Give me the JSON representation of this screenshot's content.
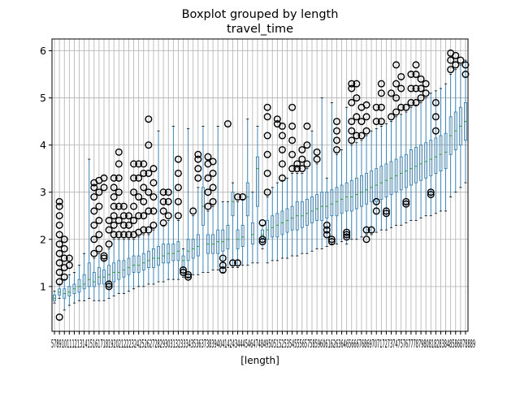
{
  "chart_data": {
    "type": "boxplot",
    "suptitle": "Boxplot grouped by length",
    "title": "travel_time",
    "xlabel": "[length]",
    "ylabel": "",
    "ylim": [
      0.05,
      6.25
    ],
    "yticks": [
      1,
      2,
      3,
      4,
      5,
      6
    ],
    "grid": true,
    "colors": {
      "box": "#1f77b4",
      "median": "#2ca02c",
      "outlier": "#000000",
      "grid": "#b0b0b0"
    },
    "visible_tick_labels_text": "57891011121314151617181920212223242526272829303132333435363738394041424344454647484950515253545556575859606162636465666768697071727374757677787980818283848586878889",
    "categories": [
      "5",
      "7",
      "8",
      "9",
      "10",
      "11",
      "12",
      "13",
      "14",
      "15",
      "16",
      "17",
      "18",
      "19",
      "20",
      "21",
      "22",
      "23",
      "24",
      "25",
      "26",
      "27",
      "28",
      "29",
      "30",
      "31",
      "32",
      "33",
      "34",
      "35",
      "36",
      "37",
      "38",
      "39",
      "40",
      "41",
      "42",
      "43",
      "44",
      "45",
      "46",
      "47",
      "48",
      "49",
      "50",
      "51",
      "52",
      "53",
      "54",
      "55",
      "56",
      "57",
      "58",
      "59",
      "60",
      "61",
      "62",
      "63",
      "64",
      "65",
      "66",
      "67",
      "68",
      "69",
      "70",
      "71",
      "72",
      "73",
      "74",
      "75",
      "76",
      "77",
      "78",
      "79",
      "80",
      "81",
      "82",
      "83",
      "84",
      "85",
      "86",
      "87",
      "88",
      "89"
    ],
    "boxes": [
      {
        "whislo": 0.65,
        "q1": 0.7,
        "med": 0.75,
        "q3": 0.82,
        "whishi": 0.9,
        "fliers": []
      },
      {
        "whislo": 0.75,
        "q1": 0.82,
        "med": 0.88,
        "q3": 0.95,
        "whishi": 1.05,
        "fliers": [
          0.35,
          1.1,
          1.3,
          1.5,
          1.7,
          1.9,
          2.1,
          2.3,
          2.5,
          2.7,
          2.8
        ]
      },
      {
        "whislo": 0.5,
        "q1": 0.75,
        "med": 0.85,
        "q3": 0.95,
        "whishi": 1.15,
        "fliers": [
          1.2,
          1.4,
          1.6,
          1.8,
          2.0
        ]
      },
      {
        "whislo": 0.6,
        "q1": 0.8,
        "med": 0.88,
        "q3": 1.0,
        "whishi": 1.25,
        "fliers": [
          1.45,
          1.6
        ]
      },
      {
        "whislo": 0.65,
        "q1": 0.85,
        "med": 0.95,
        "q3": 1.05,
        "whishi": 1.3,
        "fliers": []
      },
      {
        "whislo": 0.7,
        "q1": 0.88,
        "med": 1.0,
        "q3": 1.15,
        "whishi": 1.45,
        "fliers": []
      },
      {
        "whislo": 0.7,
        "q1": 0.95,
        "med": 1.05,
        "q3": 1.25,
        "whishi": 1.7,
        "fliers": []
      },
      {
        "whislo": 0.75,
        "q1": 1.0,
        "med": 1.15,
        "q3": 1.5,
        "whishi": 3.7,
        "fliers": []
      },
      {
        "whislo": 0.7,
        "q1": 1.0,
        "med": 1.1,
        "q3": 1.3,
        "whishi": 1.6,
        "fliers": [
          1.7,
          2.0,
          2.3,
          2.6,
          2.9,
          3.1,
          3.2
        ]
      },
      {
        "whislo": 0.7,
        "q1": 1.05,
        "med": 1.2,
        "q3": 1.4,
        "whishi": 1.7,
        "fliers": [
          1.8,
          2.1,
          2.4,
          2.7,
          3.0,
          3.25
        ]
      },
      {
        "whislo": 0.7,
        "q1": 1.05,
        "med": 1.2,
        "q3": 1.35,
        "whishi": 1.55,
        "fliers": [
          1.6,
          1.65,
          3.1,
          3.3
        ]
      },
      {
        "whislo": 0.75,
        "q1": 1.1,
        "med": 1.25,
        "q3": 1.45,
        "whishi": 1.8,
        "fliers": [
          1.0,
          1.05,
          1.9,
          2.2,
          2.4
        ]
      },
      {
        "whislo": 0.8,
        "q1": 1.1,
        "med": 1.3,
        "q3": 1.5,
        "whishi": 2.0,
        "fliers": [
          2.1,
          2.3,
          2.5,
          2.7,
          2.9,
          3.1,
          3.3
        ]
      },
      {
        "whislo": 0.85,
        "q1": 1.15,
        "med": 1.3,
        "q3": 1.55,
        "whishi": 2.0,
        "fliers": [
          2.1,
          2.4,
          2.7,
          3.0,
          3.3,
          3.6,
          3.85
        ]
      },
      {
        "whislo": 0.85,
        "q1": 1.2,
        "med": 1.35,
        "q3": 1.55,
        "whishi": 2.0,
        "fliers": [
          2.1,
          2.3,
          2.5,
          2.7
        ]
      },
      {
        "whislo": 0.9,
        "q1": 1.25,
        "med": 1.4,
        "q3": 1.6,
        "whishi": 2.0,
        "fliers": [
          2.1,
          2.3,
          2.5
        ]
      },
      {
        "whislo": 0.95,
        "q1": 1.3,
        "med": 1.45,
        "q3": 1.65,
        "whishi": 2.0,
        "fliers": [
          2.1,
          2.4,
          2.7,
          3.0,
          3.3,
          3.6
        ]
      },
      {
        "whislo": 1.0,
        "q1": 1.3,
        "med": 1.45,
        "q3": 1.65,
        "whishi": 2.05,
        "fliers": [
          2.15,
          2.5,
          2.9,
          3.3,
          3.6
        ]
      },
      {
        "whislo": 1.0,
        "q1": 1.35,
        "med": 1.5,
        "q3": 1.7,
        "whishi": 2.1,
        "fliers": [
          2.2,
          2.5,
          2.8,
          3.1,
          3.4,
          3.6
        ]
      },
      {
        "whislo": 1.05,
        "q1": 1.4,
        "med": 1.55,
        "q3": 1.75,
        "whishi": 2.1,
        "fliers": [
          2.2,
          2.6,
          3.0,
          3.4,
          4.0,
          4.55
        ]
      },
      {
        "whislo": 1.05,
        "q1": 1.4,
        "med": 1.6,
        "q3": 1.8,
        "whishi": 2.2,
        "fliers": [
          2.3,
          2.6,
          2.9,
          3.2,
          3.5
        ]
      },
      {
        "whislo": 1.1,
        "q1": 1.45,
        "med": 1.6,
        "q3": 1.85,
        "whishi": 4.3,
        "fliers": []
      },
      {
        "whislo": 1.1,
        "q1": 1.5,
        "med": 1.65,
        "q3": 1.9,
        "whishi": 2.3,
        "fliers": [
          2.35,
          2.6,
          2.8,
          3.0
        ]
      },
      {
        "whislo": 1.15,
        "q1": 1.5,
        "med": 1.7,
        "q3": 1.9,
        "whishi": 2.4,
        "fliers": [
          2.5,
          2.8,
          3.0
        ]
      },
      {
        "whislo": 1.15,
        "q1": 1.55,
        "med": 1.7,
        "q3": 1.9,
        "whishi": 4.4,
        "fliers": []
      },
      {
        "whislo": 1.15,
        "q1": 1.55,
        "med": 1.75,
        "q3": 1.95,
        "whishi": 2.4,
        "fliers": [
          2.5,
          2.8,
          3.1,
          3.4,
          3.7
        ]
      },
      {
        "whislo": 1.2,
        "q1": 1.4,
        "med": 1.55,
        "q3": 1.65,
        "whishi": 1.8,
        "fliers": [
          1.3,
          1.35
        ]
      },
      {
        "whislo": 1.2,
        "q1": 1.55,
        "med": 1.75,
        "q3": 2.0,
        "whishi": 4.35,
        "fliers": [
          1.2,
          1.25
        ]
      },
      {
        "whislo": 1.25,
        "q1": 1.6,
        "med": 1.8,
        "q3": 2.0,
        "whishi": 2.5,
        "fliers": [
          2.6
        ]
      },
      {
        "whislo": 1.25,
        "q1": 1.65,
        "med": 1.85,
        "q3": 2.1,
        "whishi": 3.1,
        "fliers": [
          3.3,
          3.5,
          3.7,
          3.8
        ]
      },
      {
        "whislo": 1.3,
        "q1": 2.3,
        "med": 2.7,
        "q3": 3.1,
        "whishi": 4.4,
        "fliers": []
      },
      {
        "whislo": 1.3,
        "q1": 1.7,
        "med": 1.9,
        "q3": 2.1,
        "whishi": 2.6,
        "fliers": [
          2.7,
          3.0,
          3.3,
          3.6,
          3.75
        ]
      },
      {
        "whislo": 1.35,
        "q1": 1.7,
        "med": 1.9,
        "q3": 2.1,
        "whishi": 2.7,
        "fliers": [
          2.8,
          3.1,
          3.4,
          3.65
        ]
      },
      {
        "whislo": 1.35,
        "q1": 1.7,
        "med": 1.95,
        "q3": 2.2,
        "whishi": 4.4,
        "fliers": []
      },
      {
        "whislo": 1.3,
        "q1": 1.75,
        "med": 1.95,
        "q3": 2.2,
        "whishi": 2.8,
        "fliers": [
          1.35,
          1.45,
          1.6
        ]
      },
      {
        "whislo": 1.4,
        "q1": 1.8,
        "med": 2.0,
        "q3": 2.3,
        "whishi": 2.8,
        "fliers": [
          4.45
        ]
      },
      {
        "whislo": 1.4,
        "q1": 2.5,
        "med": 2.8,
        "q3": 3.0,
        "whishi": 3.2,
        "fliers": [
          1.5
        ]
      },
      {
        "whislo": 1.4,
        "q1": 1.8,
        "med": 2.0,
        "q3": 2.2,
        "whishi": 2.8,
        "fliers": [
          1.5,
          2.9
        ]
      },
      {
        "whislo": 1.45,
        "q1": 1.85,
        "med": 2.05,
        "q3": 2.3,
        "whishi": 2.85,
        "fliers": [
          2.9
        ]
      },
      {
        "whislo": 1.45,
        "q1": 2.5,
        "med": 2.9,
        "q3": 3.2,
        "whishi": 4.55,
        "fliers": []
      },
      {
        "whislo": 1.5,
        "q1": 1.9,
        "med": 2.1,
        "q3": 2.35,
        "whishi": 3.0,
        "fliers": []
      },
      {
        "whislo": 1.5,
        "q1": 2.7,
        "med": 3.5,
        "q3": 3.75,
        "whishi": 4.4,
        "fliers": []
      },
      {
        "whislo": 1.8,
        "q1": 2.0,
        "med": 2.1,
        "q3": 2.2,
        "whishi": 2.3,
        "fliers": [
          1.95,
          2.0,
          2.35
        ]
      },
      {
        "whislo": 1.5,
        "q1": 2.0,
        "med": 2.2,
        "q3": 2.4,
        "whishi": 2.9,
        "fliers": [
          3.0,
          3.4,
          3.8,
          4.2,
          4.6,
          4.8
        ]
      },
      {
        "whislo": 1.55,
        "q1": 2.05,
        "med": 2.25,
        "q3": 2.5,
        "whishi": 3.1,
        "fliers": []
      },
      {
        "whislo": 1.55,
        "q1": 2.05,
        "med": 2.3,
        "q3": 2.55,
        "whishi": 3.2,
        "fliers": [
          4.45,
          4.55
        ]
      },
      {
        "whislo": 1.6,
        "q1": 2.1,
        "med": 2.35,
        "q3": 2.6,
        "whishi": 3.25,
        "fliers": [
          3.3,
          3.6,
          3.9,
          4.2,
          4.4
        ]
      },
      {
        "whislo": 1.6,
        "q1": 2.15,
        "med": 2.4,
        "q3": 2.65,
        "whishi": 3.3,
        "fliers": []
      },
      {
        "whislo": 1.65,
        "q1": 2.2,
        "med": 2.45,
        "q3": 2.7,
        "whishi": 3.4,
        "fliers": [
          3.5,
          3.8,
          4.1,
          4.4,
          4.8
        ]
      },
      {
        "whislo": 1.65,
        "q1": 2.2,
        "med": 2.5,
        "q3": 2.8,
        "whishi": 3.4,
        "fliers": [
          3.5,
          3.6
        ]
      },
      {
        "whislo": 1.7,
        "q1": 2.25,
        "med": 2.5,
        "q3": 2.8,
        "whishi": 3.4,
        "fliers": [
          3.5,
          3.7,
          3.9
        ]
      },
      {
        "whislo": 1.7,
        "q1": 2.3,
        "med": 2.55,
        "q3": 2.85,
        "whishi": 3.5,
        "fliers": [
          3.6,
          4.0,
          4.4
        ]
      },
      {
        "whislo": 1.75,
        "q1": 2.35,
        "med": 2.6,
        "q3": 2.9,
        "whishi": 4.3,
        "fliers": []
      },
      {
        "whislo": 1.8,
        "q1": 2.4,
        "med": 2.65,
        "q3": 2.95,
        "whishi": 3.6,
        "fliers": [
          3.7,
          3.85
        ]
      },
      {
        "whislo": 1.8,
        "q1": 2.4,
        "med": 2.7,
        "q3": 3.0,
        "whishi": 5.0,
        "fliers": []
      },
      {
        "whislo": 1.85,
        "q1": 2.45,
        "med": 2.7,
        "q3": 3.0,
        "whishi": 3.3,
        "fliers": [
          2.1,
          2.2,
          2.3
        ]
      },
      {
        "whislo": 1.9,
        "q1": 2.5,
        "med": 2.75,
        "q3": 3.05,
        "whishi": 4.9,
        "fliers": [
          1.95,
          2.0
        ]
      },
      {
        "whislo": 1.9,
        "q1": 2.5,
        "med": 2.8,
        "q3": 3.1,
        "whishi": 3.8,
        "fliers": [
          3.9,
          4.1,
          4.3,
          4.5
        ]
      },
      {
        "whislo": 1.95,
        "q1": 2.55,
        "med": 2.85,
        "q3": 3.15,
        "whishi": 3.9,
        "fliers": []
      },
      {
        "whislo": 1.9,
        "q1": 2.6,
        "med": 2.9,
        "q3": 3.2,
        "whishi": 4.8,
        "fliers": [
          2.05,
          2.1,
          2.15
        ]
      },
      {
        "whislo": 2.0,
        "q1": 2.6,
        "med": 2.9,
        "q3": 3.25,
        "whishi": 4.0,
        "fliers": [
          4.1,
          4.3,
          4.5,
          4.9,
          5.2,
          5.3
        ]
      },
      {
        "whislo": 2.0,
        "q1": 2.65,
        "med": 2.95,
        "q3": 3.3,
        "whishi": 4.05,
        "fliers": [
          4.2,
          4.6,
          5.0,
          5.3
        ]
      },
      {
        "whislo": 2.05,
        "q1": 2.7,
        "med": 3.0,
        "q3": 3.35,
        "whishi": 4.1,
        "fliers": [
          4.2,
          4.5,
          4.8
        ]
      },
      {
        "whislo": 2.1,
        "q1": 2.75,
        "med": 3.05,
        "q3": 3.4,
        "whishi": 4.2,
        "fliers": [
          2.0,
          2.2,
          4.3,
          4.6,
          4.85
        ]
      },
      {
        "whislo": 2.1,
        "q1": 2.8,
        "med": 3.1,
        "q3": 3.45,
        "whishi": 4.3,
        "fliers": [
          2.2
        ]
      },
      {
        "whislo": 2.15,
        "q1": 2.8,
        "med": 3.15,
        "q3": 3.5,
        "whishi": 4.35,
        "fliers": [
          2.6,
          2.8,
          4.5,
          4.8
        ]
      },
      {
        "whislo": 2.2,
        "q1": 2.85,
        "med": 3.2,
        "q3": 3.55,
        "whishi": 4.4,
        "fliers": [
          4.5,
          4.8,
          5.1,
          5.3
        ]
      },
      {
        "whislo": 2.2,
        "q1": 2.9,
        "med": 3.25,
        "q3": 3.6,
        "whishi": 4.45,
        "fliers": [
          2.55,
          2.6
        ]
      },
      {
        "whislo": 2.25,
        "q1": 2.95,
        "med": 3.3,
        "q3": 3.65,
        "whishi": 4.5,
        "fliers": [
          4.6,
          5.1
        ]
      },
      {
        "whislo": 2.3,
        "q1": 3.0,
        "med": 3.35,
        "q3": 3.7,
        "whishi": 4.6,
        "fliers": [
          4.7,
          5.0,
          5.3,
          5.7
        ]
      },
      {
        "whislo": 2.3,
        "q1": 3.05,
        "med": 3.4,
        "q3": 3.75,
        "whishi": 4.65,
        "fliers": [
          4.8,
          5.2,
          5.45
        ]
      },
      {
        "whislo": 2.35,
        "q1": 3.1,
        "med": 3.45,
        "q3": 3.8,
        "whishi": 4.7,
        "fliers": [
          2.75,
          2.8,
          4.8
        ]
      },
      {
        "whislo": 2.4,
        "q1": 3.15,
        "med": 3.5,
        "q3": 3.9,
        "whishi": 4.8,
        "fliers": [
          4.9,
          5.2,
          5.5
        ]
      },
      {
        "whislo": 2.4,
        "q1": 3.2,
        "med": 3.55,
        "q3": 3.95,
        "whishi": 4.85,
        "fliers": [
          4.9,
          5.2,
          5.5,
          5.7
        ]
      },
      {
        "whislo": 2.45,
        "q1": 3.25,
        "med": 3.6,
        "q3": 4.0,
        "whishi": 4.9,
        "fliers": [
          5.0,
          5.2,
          5.4
        ]
      },
      {
        "whislo": 2.5,
        "q1": 3.3,
        "med": 3.65,
        "q3": 4.05,
        "whishi": 5.0,
        "fliers": [
          5.1,
          5.3
        ]
      },
      {
        "whislo": 2.5,
        "q1": 3.35,
        "med": 3.7,
        "q3": 4.1,
        "whishi": 5.1,
        "fliers": [
          2.95,
          3.0
        ]
      },
      {
        "whislo": 2.55,
        "q1": 3.4,
        "med": 3.75,
        "q3": 4.15,
        "whishi": 5.15,
        "fliers": [
          4.3,
          4.6,
          4.9
        ]
      },
      {
        "whislo": 2.6,
        "q1": 3.45,
        "med": 3.8,
        "q3": 4.2,
        "whishi": 5.2,
        "fliers": []
      },
      {
        "whislo": 2.6,
        "q1": 3.5,
        "med": 3.85,
        "q3": 4.25,
        "whishi": 5.3,
        "fliers": []
      },
      {
        "whislo": 2.9,
        "q1": 3.8,
        "med": 4.2,
        "q3": 4.6,
        "whishi": 5.5,
        "fliers": [
          5.6,
          5.8,
          5.95
        ]
      },
      {
        "whislo": 3.0,
        "q1": 3.9,
        "med": 4.3,
        "q3": 4.7,
        "whishi": 5.6,
        "fliers": [
          5.7,
          5.9
        ]
      },
      {
        "whislo": 3.1,
        "q1": 4.0,
        "med": 4.4,
        "q3": 4.8,
        "whishi": 5.7,
        "fliers": [
          5.8
        ]
      },
      {
        "whislo": 3.2,
        "q1": 4.1,
        "med": 4.5,
        "q3": 4.9,
        "whishi": 5.8,
        "fliers": [
          5.5,
          5.7
        ]
      }
    ]
  }
}
